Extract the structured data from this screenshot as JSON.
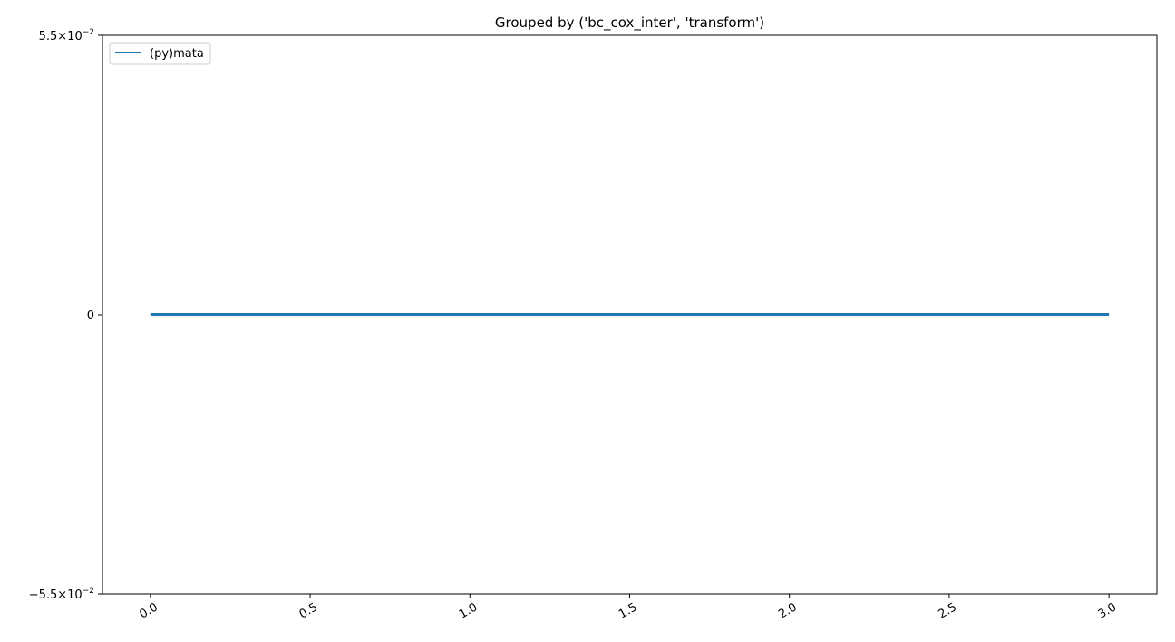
{
  "chart_data": {
    "type": "line",
    "title": "Grouped by ('bc_cox_inter', 'transform')",
    "xlabel": "",
    "ylabel": "",
    "xlim": [
      -0.15,
      3.15
    ],
    "ylim": [
      -0.055,
      0.055
    ],
    "x_ticks": [
      0.0,
      0.5,
      1.0,
      1.5,
      2.0,
      2.5,
      3.0
    ],
    "x_tick_labels": [
      "0.0",
      "0.5",
      "1.0",
      "1.5",
      "2.0",
      "2.5",
      "3.0"
    ],
    "y_ticks": [
      {
        "value": 0.055,
        "mantissa": "5.5",
        "exponent": "−2",
        "label": ""
      },
      {
        "value": 0,
        "mantissa": "",
        "exponent": "",
        "label": "0"
      },
      {
        "value": -0.055,
        "mantissa": "−5.5",
        "exponent": "−2",
        "label": ""
      }
    ],
    "y_tick_times": "×10",
    "grid": false,
    "legend_position": "upper-left",
    "series": [
      {
        "name": "(py)mata",
        "color": "#1f77b4",
        "x": [
          0,
          1,
          2,
          3
        ],
        "y": [
          0,
          0,
          0,
          0
        ]
      }
    ]
  }
}
